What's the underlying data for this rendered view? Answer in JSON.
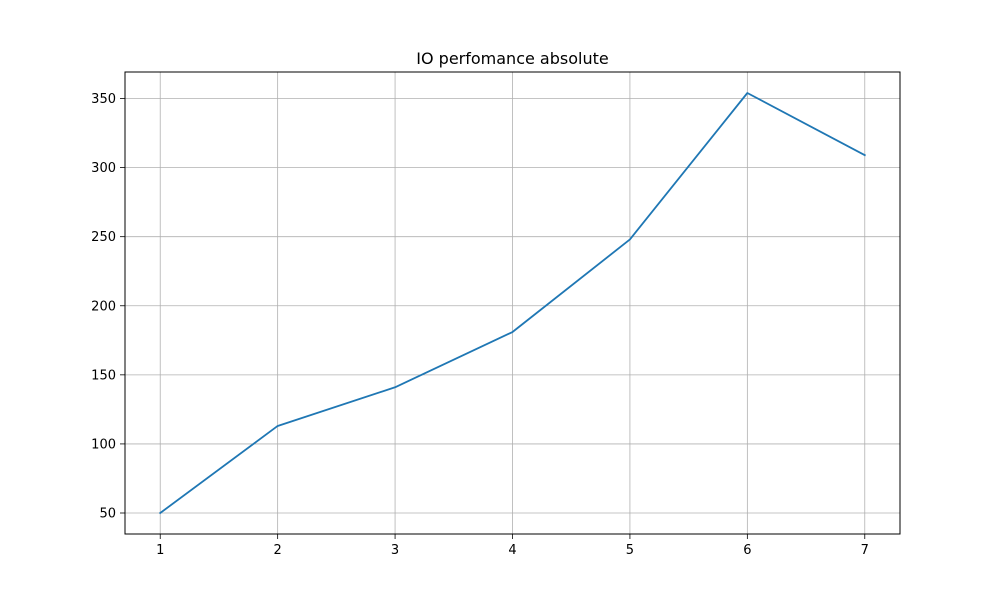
{
  "chart_data": {
    "type": "line",
    "title": "IO perfomance absolute",
    "xlabel": "",
    "ylabel": "",
    "x": [
      1,
      2,
      3,
      4,
      5,
      6,
      7
    ],
    "series": [
      {
        "values": [
          50,
          113,
          141,
          181,
          248,
          354,
          309
        ],
        "color": "#1f77b4"
      }
    ],
    "xticks": [
      1,
      2,
      3,
      4,
      5,
      6,
      7
    ],
    "yticks": [
      50,
      100,
      150,
      200,
      250,
      300,
      350
    ],
    "xlim": [
      0.7,
      7.3
    ],
    "ylim": [
      34.8,
      369.2
    ],
    "grid": true,
    "legend": "none"
  }
}
